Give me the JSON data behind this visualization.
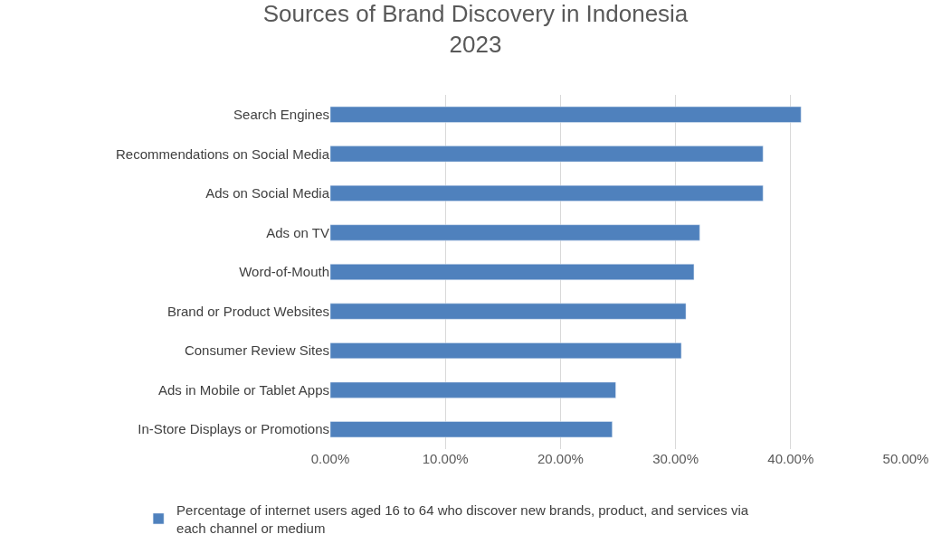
{
  "chart_data": {
    "type": "bar",
    "orientation": "horizontal",
    "title": "Sources of Brand Discovery in Indonesia\n2023",
    "categories": [
      "Search Engines",
      "Recommendations on Social Media",
      "Ads on Social Media",
      "Ads on TV",
      "Word-of-Mouth",
      "Brand or Product Websites",
      "Consumer Review Sites",
      "Ads in Mobile or Tablet Apps",
      "In-Store Displays or Promotions"
    ],
    "series": [
      {
        "name": "Percentage of internet users aged 16 to 64 who discover new brands, product, and services via each channel or medium",
        "color": "#4f81bd",
        "values": [
          40.9,
          37.6,
          37.6,
          32.1,
          31.6,
          30.9,
          30.5,
          24.8,
          24.5
        ]
      }
    ],
    "xlim": [
      0,
      50
    ],
    "xticks": [
      {
        "value": 0,
        "label": "0.00%"
      },
      {
        "value": 10,
        "label": "10.00%"
      },
      {
        "value": 20,
        "label": "20.00%"
      },
      {
        "value": 30,
        "label": "30.00%"
      },
      {
        "value": 40,
        "label": "40.00%"
      },
      {
        "value": 50,
        "label": "50.00%"
      }
    ],
    "grid": "x",
    "legend": "bottom"
  }
}
